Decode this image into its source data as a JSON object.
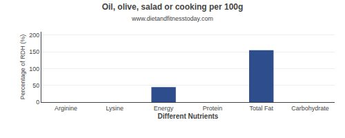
{
  "chart_data": {
    "type": "bar",
    "title": "Oil, olive, salad or cooking per 100g",
    "subtitle": "www.dietandfitnesstoday.com",
    "xlabel": "Different Nutrients",
    "ylabel": "Percentage of RDH (%)",
    "categories": [
      "Arginine",
      "Lysine",
      "Energy",
      "Protein",
      "Total Fat",
      "Carbohydrate"
    ],
    "values": [
      0,
      0,
      45,
      0,
      155,
      0
    ],
    "color": "#2e4d8c",
    "ylim": [
      0,
      210
    ],
    "yticks": [
      0,
      50,
      100,
      150,
      200
    ],
    "grid": true
  }
}
